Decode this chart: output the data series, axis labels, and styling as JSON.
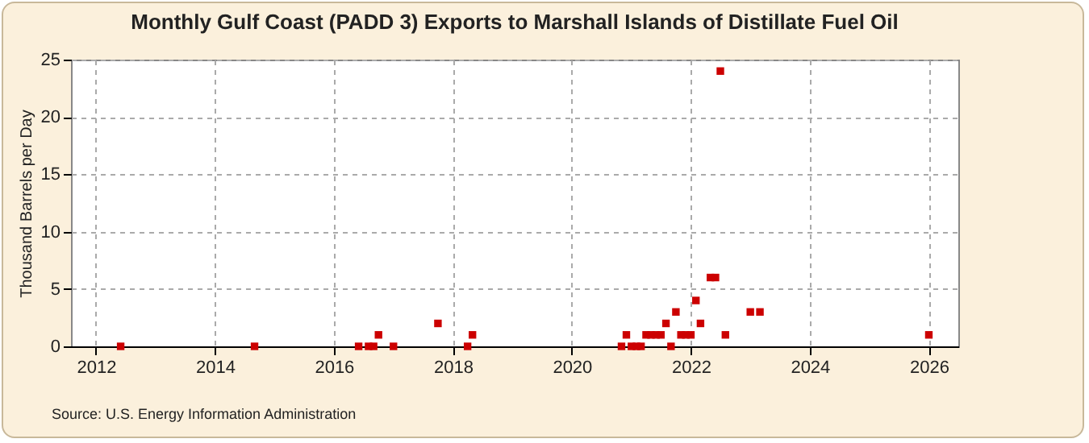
{
  "chart_data": {
    "type": "scatter",
    "title": "Monthly Gulf Coast (PADD 3) Exports to Marshall Islands of Distillate Fuel Oil",
    "ylabel": "Thousand Barrels per Day",
    "annotations": [
      "Source: U.S. Energy Information Administration"
    ],
    "x": [
      "2012-06",
      "2014-09",
      "2016-06",
      "2016-08",
      "2016-09",
      "2016-10",
      "2017-01",
      "2017-10",
      "2018-04",
      "2018-05",
      "2020-11",
      "2020-12",
      "2021-01",
      "2021-02",
      "2021-03",
      "2021-04",
      "2021-05",
      "2021-06",
      "2021-07",
      "2021-08",
      "2021-09",
      "2021-10",
      "2021-11",
      "2021-12",
      "2022-01",
      "2022-02",
      "2022-03",
      "2022-05",
      "2022-06",
      "2022-07",
      "2022-08",
      "2023-01",
      "2023-03",
      "2026-01"
    ],
    "series": [
      {
        "color": "#cc0000",
        "values": [
          0,
          0,
          0,
          0,
          0,
          1,
          0,
          2,
          0,
          1,
          0,
          1,
          0,
          0,
          0,
          1,
          1,
          1,
          1,
          2,
          0,
          3,
          1,
          1,
          1,
          4,
          2,
          6,
          6,
          24,
          1,
          3,
          3,
          1
        ]
      }
    ],
    "xlim": [
      "2011-08",
      "2026-07"
    ],
    "xticks": [
      {
        "value": "2012",
        "label": "2012"
      },
      {
        "value": "2014",
        "label": "2014"
      },
      {
        "value": "2016",
        "label": "2016"
      },
      {
        "value": "2018",
        "label": "2018"
      },
      {
        "value": "2020",
        "label": "2020"
      },
      {
        "value": "2022",
        "label": "2022"
      },
      {
        "value": "2024",
        "label": "2024"
      },
      {
        "value": "2026",
        "label": "2026"
      }
    ],
    "ylim": [
      0,
      25
    ],
    "yticks": [
      0,
      5,
      10,
      15,
      20,
      25
    ],
    "grid": true,
    "marker": "square",
    "legend": false
  }
}
